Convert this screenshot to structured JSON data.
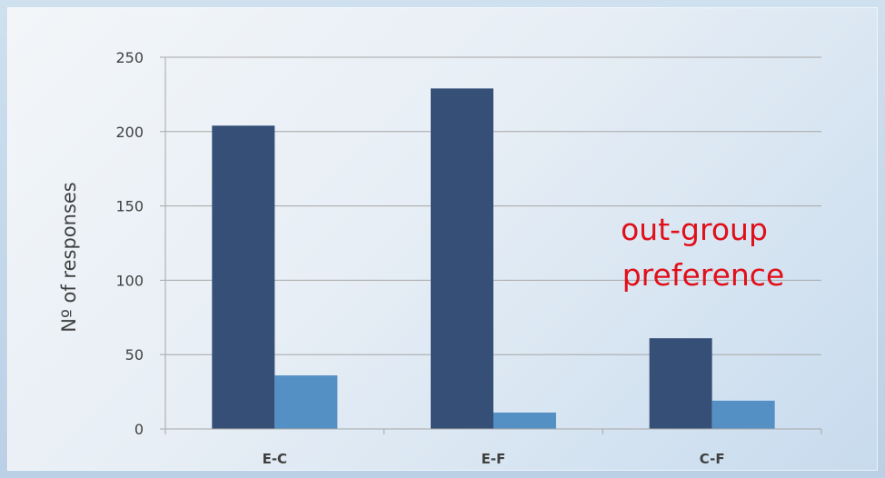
{
  "chart_data": {
    "type": "bar",
    "categories": [
      "E-C",
      "E-F",
      "C-F"
    ],
    "series": [
      {
        "values": [
          204,
          229,
          61
        ],
        "color": "#364f77"
      },
      {
        "values": [
          36,
          11,
          19
        ],
        "color": "#5590c5"
      }
    ],
    "ylabel": "Nº of responses",
    "xlabel": "",
    "ylim": [
      0,
      250
    ],
    "yticks": [
      0,
      50,
      100,
      150,
      200,
      250
    ],
    "grid": true,
    "annotation": [
      "out-group",
      "preference"
    ],
    "annotation_color": "#e0101a"
  }
}
